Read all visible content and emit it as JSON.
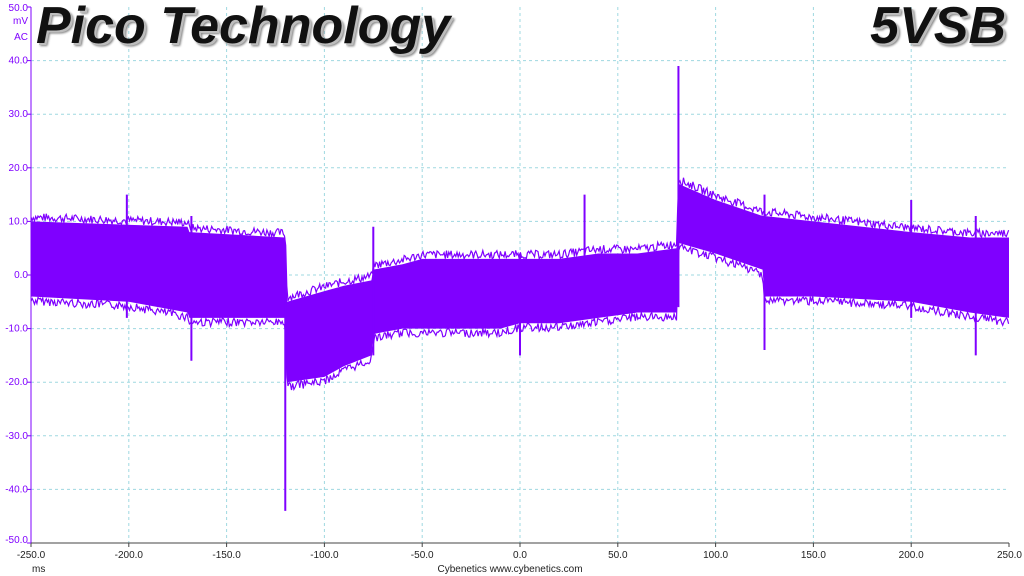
{
  "chart_data": {
    "type": "line",
    "title": "Pico Technology",
    "subtitle": "5VSB",
    "xlabel": "ms",
    "ylabel": "mV",
    "ylabel_extra": "AC",
    "xlim": [
      -250,
      250
    ],
    "ylim": [
      -50,
      50
    ],
    "x_ticks": [
      "-250.0",
      "-200.0",
      "-150.0",
      "-100.0",
      "-50.0",
      "0.0",
      "50.0",
      "100.0",
      "150.0",
      "200.0",
      "250.0"
    ],
    "y_ticks": [
      "50.0",
      "40.0",
      "30.0",
      "20.0",
      "10.0",
      "0.0",
      "-10.0",
      "-20.0",
      "-30.0",
      "-40.0",
      "-50.0"
    ],
    "grid": true,
    "footer": "Cybenetics   www.cybenetics.com",
    "series": [
      {
        "color": "#7f00ff",
        "band_upper": [
          [
            -250,
            10
          ],
          [
            -170,
            9
          ],
          [
            -169,
            8
          ],
          [
            -120,
            7
          ],
          [
            -119,
            -5
          ],
          [
            -100,
            -3
          ],
          [
            -90,
            -2
          ],
          [
            -76,
            -1
          ],
          [
            -75,
            1
          ],
          [
            -60,
            2
          ],
          [
            -50,
            3
          ],
          [
            -10,
            3
          ],
          [
            0,
            3
          ],
          [
            20,
            3
          ],
          [
            40,
            4
          ],
          [
            60,
            4
          ],
          [
            80,
            5
          ],
          [
            81,
            17
          ],
          [
            100,
            14
          ],
          [
            124,
            11
          ],
          [
            125,
            11
          ],
          [
            150,
            10
          ],
          [
            200,
            8
          ],
          [
            230,
            7
          ],
          [
            250,
            7
          ]
        ],
        "band_lower": [
          [
            -250,
            -4
          ],
          [
            -200,
            -5
          ],
          [
            -170,
            -7
          ],
          [
            -169,
            -8
          ],
          [
            -120,
            -8
          ],
          [
            -119,
            -20
          ],
          [
            -100,
            -19
          ],
          [
            -90,
            -17
          ],
          [
            -76,
            -15
          ],
          [
            -75,
            -11
          ],
          [
            -60,
            -10
          ],
          [
            -50,
            -10
          ],
          [
            -10,
            -10
          ],
          [
            0,
            -9
          ],
          [
            20,
            -9
          ],
          [
            40,
            -8
          ],
          [
            60,
            -7
          ],
          [
            80,
            -7
          ],
          [
            81,
            6
          ],
          [
            100,
            4
          ],
          [
            124,
            1
          ],
          [
            125,
            -4
          ],
          [
            150,
            -4
          ],
          [
            200,
            -5
          ],
          [
            230,
            -7
          ],
          [
            250,
            -8
          ]
        ],
        "spikes": [
          {
            "x": -201,
            "y": [
              -8,
              15
            ]
          },
          {
            "x": -168,
            "y": [
              -16,
              11
            ]
          },
          {
            "x": -120,
            "y": [
              -44,
              0
            ]
          },
          {
            "x": -75,
            "y": [
              -15,
              9
            ]
          },
          {
            "x": 0,
            "y": [
              -15,
              4
            ]
          },
          {
            "x": 33,
            "y": [
              -5,
              15
            ]
          },
          {
            "x": 81,
            "y": [
              -6,
              39
            ]
          },
          {
            "x": 125,
            "y": [
              -14,
              15
            ]
          },
          {
            "x": 200,
            "y": [
              -8,
              14
            ]
          },
          {
            "x": 233,
            "y": [
              -15,
              11
            ]
          }
        ]
      }
    ]
  }
}
